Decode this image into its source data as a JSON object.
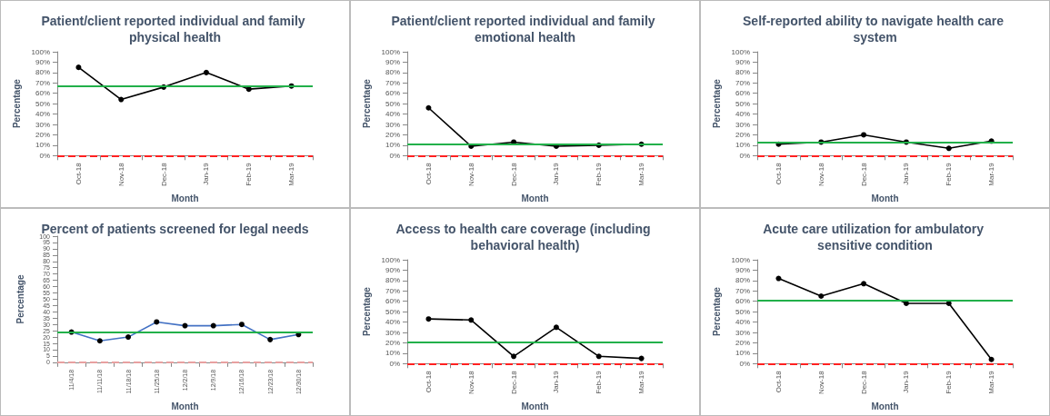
{
  "chart_data": [
    {
      "type": "line",
      "title": "Patient/client reported individual and family physical health",
      "xlabel": "Month",
      "ylabel": "Percentage",
      "categories": [
        "Oct-18",
        "Nov-18",
        "Dec-18",
        "Jan-19",
        "Feb-19",
        "Mar-19"
      ],
      "series": [
        {
          "color": "#000000",
          "values": [
            85,
            54,
            66,
            80,
            64,
            67
          ]
        }
      ],
      "ylim": [
        0,
        100
      ],
      "yticks": [
        {
          "value": 0,
          "label": "0%"
        },
        {
          "value": 10,
          "label": "10%"
        },
        {
          "value": 20,
          "label": "20%"
        },
        {
          "value": 30,
          "label": "30%"
        },
        {
          "value": 40,
          "label": "40%"
        },
        {
          "value": 50,
          "label": "50%"
        },
        {
          "value": 60,
          "label": "60%"
        },
        {
          "value": 70,
          "label": "70%"
        },
        {
          "value": 80,
          "label": "80%"
        },
        {
          "value": 90,
          "label": "90%"
        },
        {
          "value": 100,
          "label": "100%"
        }
      ],
      "ref_lines": [
        {
          "axis": "y",
          "value": 67,
          "color": "#22b04a",
          "line_style": "solid"
        },
        {
          "axis": "y",
          "value": 0,
          "color": "#ff2020",
          "line_style": "dashed"
        }
      ],
      "marker": "circle",
      "line_style": "solid",
      "grid": false
    },
    {
      "type": "line",
      "title": "Patient/client reported individual and family emotional health",
      "xlabel": "Month",
      "ylabel": "Percentage",
      "categories": [
        "Oct-18",
        "Nov-18",
        "Dec-18",
        "Jan-19",
        "Feb-19",
        "Mar-19"
      ],
      "series": [
        {
          "color": "#000000",
          "values": [
            46,
            9,
            13,
            9,
            10,
            11
          ]
        }
      ],
      "ylim": [
        0,
        100
      ],
      "yticks": [
        {
          "value": 0,
          "label": "0%"
        },
        {
          "value": 10,
          "label": "10%"
        },
        {
          "value": 20,
          "label": "20%"
        },
        {
          "value": 30,
          "label": "30%"
        },
        {
          "value": 40,
          "label": "40%"
        },
        {
          "value": 50,
          "label": "50%"
        },
        {
          "value": 60,
          "label": "60%"
        },
        {
          "value": 70,
          "label": "70%"
        },
        {
          "value": 80,
          "label": "80%"
        },
        {
          "value": 90,
          "label": "90%"
        },
        {
          "value": 100,
          "label": "100%"
        }
      ],
      "ref_lines": [
        {
          "axis": "y",
          "value": 11,
          "color": "#22b04a",
          "line_style": "solid"
        },
        {
          "axis": "y",
          "value": 0,
          "color": "#ff2020",
          "line_style": "dashed"
        }
      ],
      "marker": "circle",
      "line_style": "solid",
      "grid": false
    },
    {
      "type": "line",
      "title": "Self-reported ability to navigate health care system",
      "xlabel": "Month",
      "ylabel": "Percentage",
      "categories": [
        "Oct-18",
        "Nov-18",
        "Dec-18",
        "Jan-19",
        "Feb-19",
        "Mar-19"
      ],
      "series": [
        {
          "color": "#000000",
          "values": [
            11,
            13,
            20,
            13,
            7,
            14
          ]
        }
      ],
      "ylim": [
        0,
        100
      ],
      "yticks": [
        {
          "value": 0,
          "label": "0%"
        },
        {
          "value": 10,
          "label": "10%"
        },
        {
          "value": 20,
          "label": "20%"
        },
        {
          "value": 30,
          "label": "30%"
        },
        {
          "value": 40,
          "label": "40%"
        },
        {
          "value": 50,
          "label": "50%"
        },
        {
          "value": 60,
          "label": "60%"
        },
        {
          "value": 70,
          "label": "70%"
        },
        {
          "value": 80,
          "label": "80%"
        },
        {
          "value": 90,
          "label": "90%"
        },
        {
          "value": 100,
          "label": "100%"
        }
      ],
      "ref_lines": [
        {
          "axis": "y",
          "value": 13,
          "color": "#22b04a",
          "line_style": "solid"
        },
        {
          "axis": "y",
          "value": 0,
          "color": "#ff2020",
          "line_style": "dashed"
        }
      ],
      "marker": "circle",
      "line_style": "solid",
      "grid": false
    },
    {
      "type": "line",
      "title": "Percent of patients screened for legal needs",
      "xlabel": "Month",
      "ylabel": "Percentage",
      "categories": [
        "11/4/18",
        "11/11/18",
        "11/18/18",
        "11/25/18",
        "12/2/18",
        "12/9/18",
        "12/16/18",
        "12/23/18",
        "12/30/18"
      ],
      "series": [
        {
          "color": "#4472c4",
          "values": [
            24,
            17,
            20,
            32,
            29,
            29,
            30,
            18,
            22
          ]
        }
      ],
      "ylim": [
        0,
        100
      ],
      "yticks": [
        0,
        5,
        10,
        15,
        20,
        25,
        30,
        35,
        40,
        45,
        50,
        55,
        60,
        65,
        70,
        75,
        80,
        85,
        90,
        95,
        100
      ],
      "ref_lines": [
        {
          "axis": "y",
          "value": 24,
          "color": "#22b04a",
          "line_style": "solid"
        },
        {
          "axis": "y",
          "value": 0,
          "color": "#e8a0a0",
          "line_style": "dashed"
        }
      ],
      "marker": "circle",
      "line_style": "solid",
      "grid": false
    },
    {
      "type": "line",
      "title": "Access to health care coverage (including behavioral health)",
      "xlabel": "Month",
      "ylabel": "Percentage",
      "categories": [
        "Oct-18",
        "Nov-18",
        "Dec-18",
        "Jan-19",
        "Feb-19",
        "Mar-19"
      ],
      "series": [
        {
          "color": "#000000",
          "values": [
            43,
            42,
            7,
            35,
            7,
            5
          ]
        }
      ],
      "ylim": [
        0,
        100
      ],
      "yticks": [
        {
          "value": 0,
          "label": "0%"
        },
        {
          "value": 10,
          "label": "10%"
        },
        {
          "value": 20,
          "label": "20%"
        },
        {
          "value": 30,
          "label": "30%"
        },
        {
          "value": 40,
          "label": "40%"
        },
        {
          "value": 50,
          "label": "50%"
        },
        {
          "value": 60,
          "label": "60%"
        },
        {
          "value": 70,
          "label": "70%"
        },
        {
          "value": 80,
          "label": "80%"
        },
        {
          "value": 90,
          "label": "90%"
        },
        {
          "value": 100,
          "label": "100%"
        }
      ],
      "ref_lines": [
        {
          "axis": "y",
          "value": 21,
          "color": "#22b04a",
          "line_style": "solid"
        },
        {
          "axis": "y",
          "value": 0,
          "color": "#ff2020",
          "line_style": "dashed"
        }
      ],
      "marker": "circle",
      "line_style": "solid",
      "grid": false
    },
    {
      "type": "line",
      "title": "Acute care utilization for ambulatory sensitive condition",
      "xlabel": "Month",
      "ylabel": "Percentage",
      "categories": [
        "Oct-18",
        "Nov-18",
        "Dec-18",
        "Jan-19",
        "Feb-19",
        "Mar-19"
      ],
      "series": [
        {
          "color": "#000000",
          "values": [
            82,
            65,
            77,
            58,
            58,
            4
          ]
        }
      ],
      "ylim": [
        0,
        100
      ],
      "yticks": [
        {
          "value": 0,
          "label": "0%"
        },
        {
          "value": 10,
          "label": "10%"
        },
        {
          "value": 20,
          "label": "20%"
        },
        {
          "value": 30,
          "label": "30%"
        },
        {
          "value": 40,
          "label": "40%"
        },
        {
          "value": 50,
          "label": "50%"
        },
        {
          "value": 60,
          "label": "60%"
        },
        {
          "value": 70,
          "label": "70%"
        },
        {
          "value": 80,
          "label": "80%"
        },
        {
          "value": 90,
          "label": "90%"
        },
        {
          "value": 100,
          "label": "100%"
        }
      ],
      "ref_lines": [
        {
          "axis": "y",
          "value": 61,
          "color": "#22b04a",
          "line_style": "solid"
        },
        {
          "axis": "y",
          "value": 0,
          "color": "#ff2020",
          "line_style": "dashed"
        }
      ],
      "marker": "circle",
      "line_style": "solid",
      "grid": false
    }
  ]
}
